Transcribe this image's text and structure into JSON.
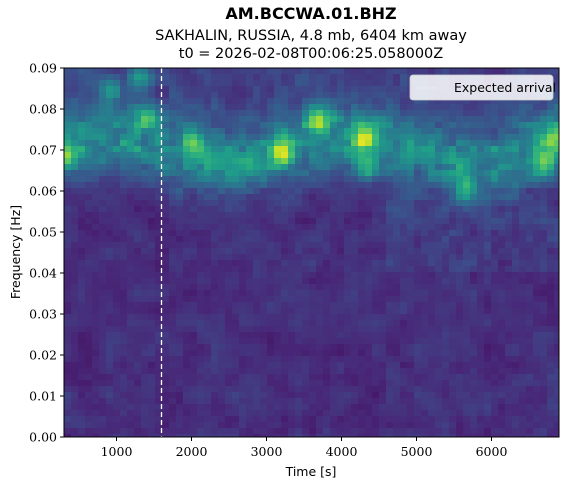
{
  "chart_data": {
    "type": "heatmap",
    "title": "AM.BCCWA.01.BHZ",
    "subtitle_line1": "SAKHALIN, RUSSIA, 4.8 mb, 6404 km away",
    "subtitle_line2": "t0 = 2026-02-08T00:06:25.058000Z",
    "xlabel": "Time [s]",
    "ylabel": "Frequency [Hz]",
    "xlim": [
      300,
      6900
    ],
    "ylim": [
      0.0,
      0.09
    ],
    "x_ticks": [
      1000,
      2000,
      3000,
      4000,
      5000,
      6000
    ],
    "x_tick_labels": [
      "1000",
      "2000",
      "3000",
      "4000",
      "5000",
      "6000"
    ],
    "y_ticks": [
      0.0,
      0.01,
      0.02,
      0.03,
      0.04,
      0.05,
      0.06,
      0.07,
      0.08,
      0.09
    ],
    "y_tick_labels": [
      "0.00",
      "0.01",
      "0.02",
      "0.03",
      "0.04",
      "0.05",
      "0.06",
      "0.07",
      "0.08",
      "0.09"
    ],
    "colormap": "viridis",
    "expected_arrival_time": 1600,
    "legend": {
      "label": "Expected arrival",
      "placement": "top-right"
    },
    "dominant_band_hz": 0.07,
    "hot_spots": [
      {
        "t": 3200,
        "f": 0.07,
        "level": 1.0
      },
      {
        "t": 4300,
        "f": 0.073,
        "level": 0.9
      },
      {
        "t": 6850,
        "f": 0.073,
        "level": 0.9
      },
      {
        "t": 3700,
        "f": 0.077,
        "level": 0.8
      },
      {
        "t": 6700,
        "f": 0.066,
        "level": 0.75
      },
      {
        "t": 4350,
        "f": 0.066,
        "level": 0.75
      },
      {
        "t": 350,
        "f": 0.069,
        "level": 0.8
      },
      {
        "t": 2000,
        "f": 0.072,
        "level": 0.7
      },
      {
        "t": 900,
        "f": 0.085,
        "level": 0.6
      },
      {
        "t": 1300,
        "f": 0.088,
        "level": 0.6
      },
      {
        "t": 5650,
        "f": 0.061,
        "level": 0.6
      },
      {
        "t": 1400,
        "f": 0.078,
        "level": 0.55
      }
    ]
  }
}
